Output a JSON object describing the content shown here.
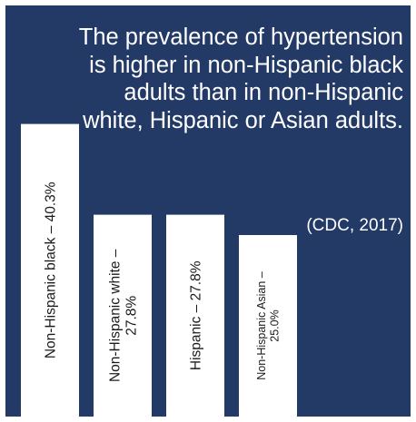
{
  "headline": "The prevalence of hypertension is higher in non-Hispanic black adults than in non-Hispanic white, Hispanic or Asian adults.",
  "source": "(CDC, 2017)",
  "colors": {
    "panel": "#233a67",
    "bar": "#ffffff",
    "text": "#ffffff",
    "bar_text": "#1a1a1a"
  },
  "chart_data": {
    "type": "bar",
    "orientation": "vertical",
    "categories": [
      "Non-Hispanic black",
      "Non-Hispanic white",
      "Hispanic",
      "Non-Hispanic Asian"
    ],
    "values": [
      40.3,
      27.8,
      27.8,
      25.0
    ],
    "bar_labels": [
      [
        "Non-Hispanic black – 40.3%"
      ],
      [
        "Non-Hispanic white –",
        "27.8%"
      ],
      [
        "Hispanic – 27.8%"
      ],
      [
        "Non-Hispanic Asian –",
        "25.0%"
      ]
    ],
    "title": "",
    "xlabel": "",
    "ylabel": "",
    "grid": false,
    "legend": "none"
  }
}
